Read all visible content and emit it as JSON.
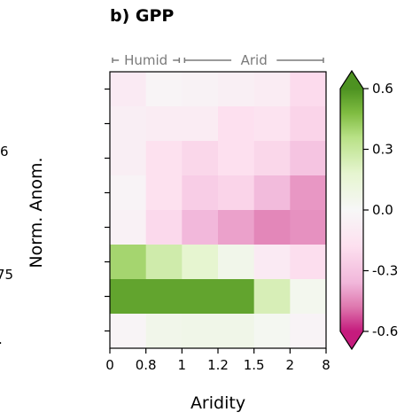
{
  "chart_data": {
    "type": "heatmap",
    "title": "b) GPP",
    "xlabel": "Aridity",
    "ylabel": "Norm. Anom.",
    "x_tick_labels": [
      "0",
      "0.8",
      "1",
      "1.2",
      "1.5",
      "2",
      "8"
    ],
    "x_bands": [
      {
        "label": "Humid",
        "from": 0,
        "to": 2
      },
      {
        "label": "Arid",
        "from": 2,
        "to": 6
      }
    ],
    "colorbar": {
      "ticks": [
        "0.6",
        "0.3",
        "0.0",
        "-0.3",
        "-0.6"
      ],
      "tick_values": [
        0.6,
        0.3,
        0.0,
        -0.3,
        -0.6
      ],
      "range": [
        -0.6,
        0.6
      ],
      "colormap": "PiYG",
      "extend": "both"
    },
    "y_left_partial_labels": [
      "6",
      "75",
      "."
    ],
    "values": [
      [
        -0.1,
        -0.02,
        -0.04,
        -0.06,
        -0.09,
        -0.2
      ],
      [
        -0.07,
        -0.09,
        -0.09,
        -0.18,
        -0.16,
        -0.23
      ],
      [
        -0.07,
        -0.17,
        -0.22,
        -0.18,
        -0.22,
        -0.3
      ],
      [
        -0.03,
        -0.17,
        -0.26,
        -0.23,
        -0.34,
        -0.42
      ],
      [
        -0.05,
        -0.21,
        -0.35,
        -0.4,
        -0.45,
        -0.43
      ],
      [
        0.4,
        0.27,
        0.18,
        0.06,
        -0.1,
        -0.19
      ],
      [
        0.55,
        0.55,
        0.55,
        0.55,
        0.24,
        0.04
      ],
      [
        -0.02,
        0.06,
        0.07,
        0.07,
        0.03,
        -0.03
      ]
    ]
  }
}
